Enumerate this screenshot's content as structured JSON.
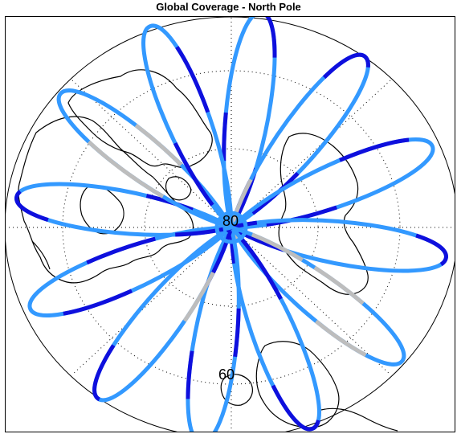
{
  "figure": {
    "title": "Global Coverage - North Pole",
    "latitude_labels": [
      "60",
      "80"
    ]
  },
  "map": {
    "projection": "orthographic",
    "center": "North Pole",
    "graticule": "dotted",
    "coastlines": "black outline"
  },
  "colors": {
    "track_light": "#3399ff",
    "track_dark": "#0f0fdd",
    "track_gray": "#bdbdbd",
    "frame": "#000000"
  }
}
